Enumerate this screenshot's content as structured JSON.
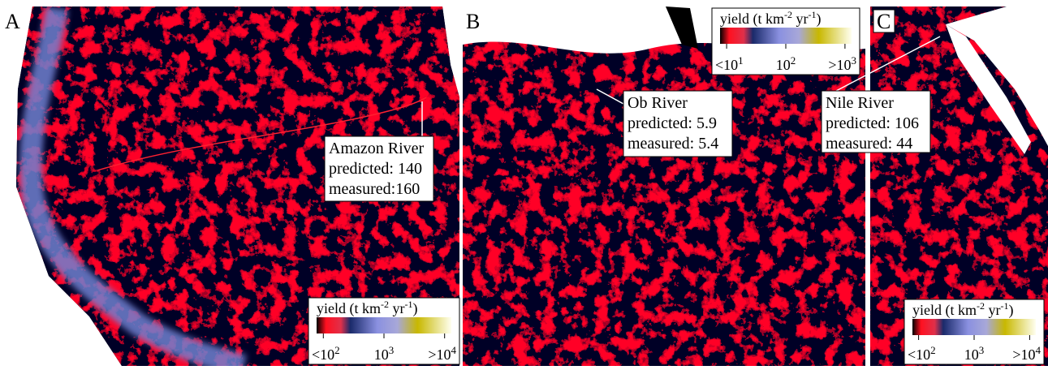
{
  "panels": [
    {
      "label": "A",
      "annotation": {
        "name": "Amazon River",
        "predicted": "predicted: 140",
        "measured": "measured:160"
      },
      "colorbar": {
        "title": [
          "yield (t km",
          "-2",
          " yr",
          "-1",
          ")"
        ],
        "ticks": [
          {
            "base": "<10",
            "exp": "2"
          },
          {
            "base": "10",
            "exp": "3"
          },
          {
            "base": ">10",
            "exp": "4"
          }
        ]
      }
    },
    {
      "label": "B",
      "annotation": {
        "name": "Ob River",
        "predicted": "predicted: 5.9",
        "measured": "measured: 5.4"
      },
      "colorbar": {
        "title": [
          "yield (t km",
          "-2",
          " yr",
          "-1",
          ")"
        ],
        "ticks": [
          {
            "base": "<10",
            "exp": "1"
          },
          {
            "base": "10",
            "exp": "2"
          },
          {
            "base": ">10",
            "exp": "3"
          }
        ]
      }
    },
    {
      "label": "C",
      "annotation": {
        "name": "Nile River",
        "predicted": "predicted: 106",
        "measured": "measured: 44"
      },
      "colorbar": {
        "title": [
          "yield (t km",
          "-2",
          " yr",
          "-1",
          ")"
        ],
        "ticks": [
          {
            "base": "<10",
            "exp": "2"
          },
          {
            "base": "10",
            "exp": "3"
          },
          {
            "base": ">10",
            "exp": "4"
          }
        ]
      }
    }
  ]
}
